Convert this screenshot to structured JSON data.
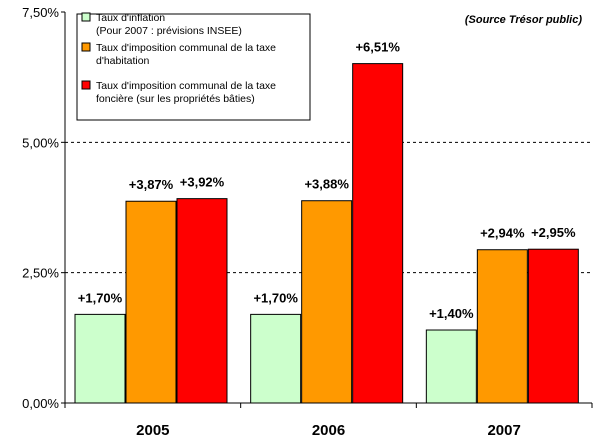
{
  "chart_data": {
    "type": "bar",
    "title": "",
    "source": "(Source Trésor public)",
    "xlabel": "",
    "ylabel": "",
    "categories": [
      "2005",
      "2006",
      "2007"
    ],
    "ylim": [
      0,
      7.5
    ],
    "yticks": [
      "0,00%",
      "2,50%",
      "5,00%",
      "7,50%"
    ],
    "ytick_values": [
      0,
      2.5,
      5,
      7.5
    ],
    "grid": "dashed horizontal at 2,50% and 5,00%",
    "legend_position": "top-left",
    "series": [
      {
        "name": "Taux d'inflation\n(Pour 2007 : prévisions INSEE)",
        "color": "#ccffcc",
        "values": [
          1.7,
          1.7,
          1.4
        ],
        "labels": [
          "+1,70%",
          "+1,70%",
          "+1,40%"
        ]
      },
      {
        "name": "Taux d'imposition communal de la taxe\nd'habitation",
        "color": "#ff9900",
        "values": [
          3.87,
          3.88,
          2.94
        ],
        "labels": [
          "+3,87%",
          "+3,88%",
          "+2,94%"
        ]
      },
      {
        "name": "Taux d'imposition communal de la taxe\nfoncière (sur les propriétés bâties)",
        "color": "#ff0000",
        "values": [
          3.92,
          6.51,
          2.95
        ],
        "labels": [
          "+3,92%",
          "+6,51%",
          "+2,95%"
        ]
      }
    ]
  }
}
